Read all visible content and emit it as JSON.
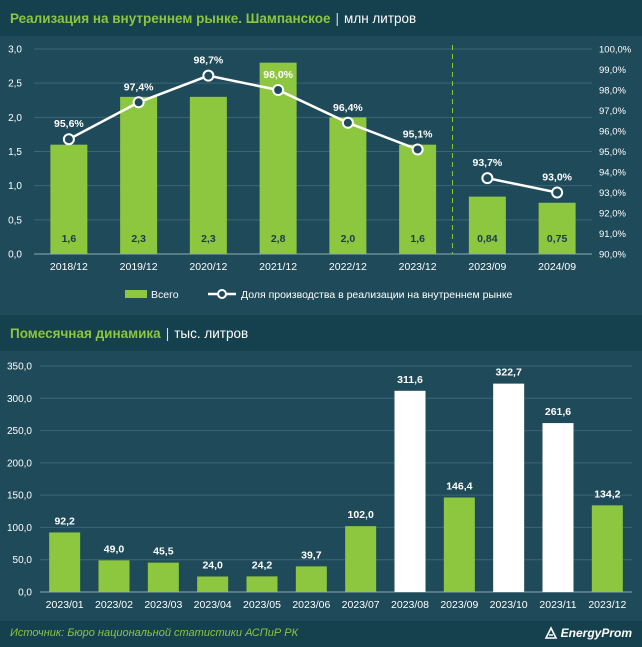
{
  "colors": {
    "accent": "#8dc63f",
    "bar_green": "#8dc63f",
    "bar_white": "#ffffff",
    "background": "#1f4a59",
    "header_bg": "#15404e"
  },
  "header_top": {
    "title": "Реализация на внутреннем рынке. Шампанское",
    "separator": "|",
    "unit": "млн литров"
  },
  "header_bottom": {
    "title": "Помесячная динамика",
    "separator": "|",
    "unit": "тыс. литров"
  },
  "chart_data": [
    {
      "type": "bar",
      "categories": [
        "2018/12",
        "2019/12",
        "2020/12",
        "2021/12",
        "2022/12",
        "2023/12",
        "2023/09",
        "2024/09"
      ],
      "series": [
        {
          "name": "Всего",
          "type": "bar",
          "axis": "left",
          "values": [
            1.6,
            2.3,
            2.3,
            2.8,
            2.0,
            1.6,
            0.84,
            0.75
          ],
          "labels": [
            "1,6",
            "2,3",
            "2,3",
            "2,8",
            "2,0",
            "1,6",
            "0,84",
            "0,75"
          ]
        },
        {
          "name": "Доля производства в реализации на внутреннем рынке",
          "type": "line",
          "axis": "right",
          "segments": [
            [
              0,
              5
            ],
            [
              6,
              7
            ]
          ],
          "values": [
            95.6,
            97.4,
            98.7,
            98.0,
            96.4,
            95.1,
            93.7,
            93.0
          ],
          "labels": [
            "95,6%",
            "97,4%",
            "98,7%",
            "98,0%",
            "96,4%",
            "95,1%",
            "93,7%",
            "93,0%"
          ]
        }
      ],
      "ylim": [
        0,
        3.0
      ],
      "yticks": [
        "0,0",
        "0,5",
        "1,0",
        "1,5",
        "2,0",
        "2,5",
        "3,0"
      ],
      "y2lim": [
        90.0,
        100.0
      ],
      "y2ticks": [
        "90,0%",
        "91,0%",
        "92,0%",
        "93,0%",
        "94,0%",
        "95,0%",
        "96,0%",
        "97,0%",
        "98,0%",
        "99,0%",
        "100,0%"
      ],
      "divider_after_index": 5,
      "legend_position": "bottom",
      "grid": true
    },
    {
      "type": "bar",
      "categories": [
        "2023/01",
        "2023/02",
        "2023/03",
        "2023/04",
        "2023/05",
        "2023/06",
        "2023/07",
        "2023/08",
        "2023/09",
        "2023/10",
        "2023/11",
        "2023/12"
      ],
      "values": [
        92.2,
        49.0,
        45.5,
        24.0,
        24.2,
        39.7,
        102.0,
        311.6,
        146.4,
        322.7,
        261.6,
        134.2
      ],
      "labels": [
        "92,2",
        "49,0",
        "45,5",
        "24,0",
        "24,2",
        "39,7",
        "102,0",
        "311,6",
        "146,4",
        "322,7",
        "261,6",
        "134,2"
      ],
      "highlight": [
        false,
        false,
        false,
        false,
        false,
        false,
        false,
        true,
        false,
        true,
        true,
        false
      ],
      "ylim": [
        0,
        350
      ],
      "yticks": [
        "0,0",
        "50,0",
        "100,0",
        "150,0",
        "200,0",
        "250,0",
        "300,0",
        "350,0"
      ],
      "grid": true
    }
  ],
  "footer": {
    "source": "Источник: Бюро национальной статистики АСПиР РК",
    "logo": "EnergyProm"
  }
}
